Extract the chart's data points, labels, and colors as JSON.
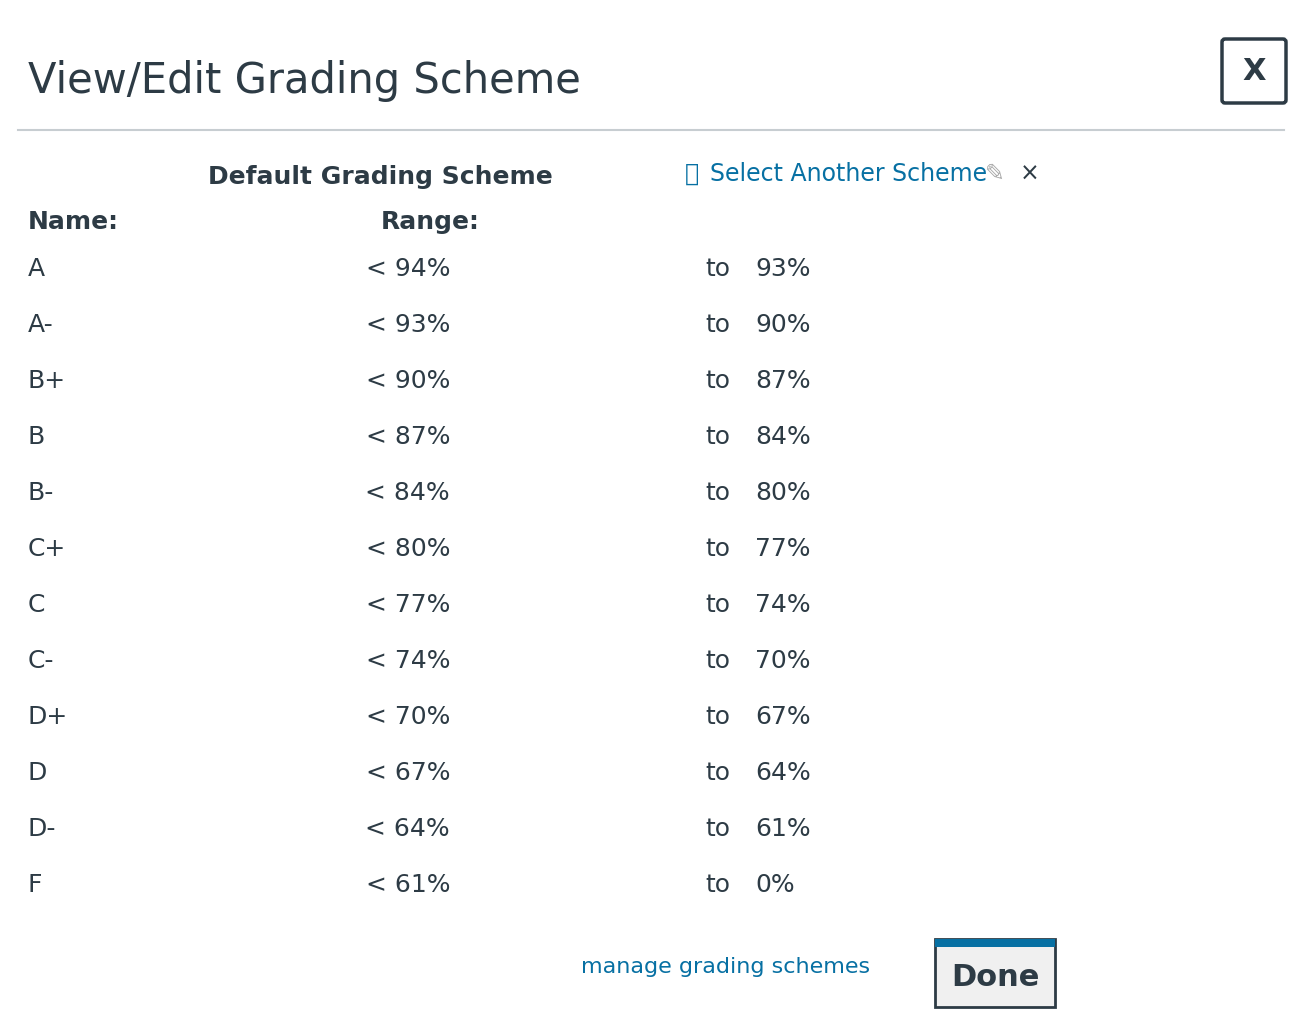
{
  "title": "View/Edit Grading Scheme",
  "close_button_label": "X",
  "default_scheme_label": "Default Grading Scheme",
  "select_another_label": "Select Another Scheme",
  "header_name": "Name:",
  "header_range": "Range:",
  "grades": [
    "A",
    "A-",
    "B+",
    "B",
    "B-",
    "C+",
    "C",
    "C-",
    "D+",
    "D",
    "D-",
    "F"
  ],
  "upper": [
    "< 94%",
    "< 93%",
    "< 90%",
    "< 87%",
    "< 84%",
    "< 80%",
    "< 77%",
    "< 74%",
    "< 70%",
    "< 67%",
    "< 64%",
    "< 61%"
  ],
  "lower": [
    "93%",
    "90%",
    "87%",
    "84%",
    "80%",
    "77%",
    "74%",
    "70%",
    "67%",
    "64%",
    "61%",
    "0%"
  ],
  "manage_label": "manage grading schemes",
  "done_label": "Done",
  "bg_color": "#ffffff",
  "border_color": "#2d3b45",
  "blue_color": "#0770a3",
  "text_color": "#2d3b45",
  "separator_color": "#c7cdd1",
  "done_bg": "#f0f0f0",
  "done_border": "#2d3b45",
  "close_border_color": "#2d3b45",
  "fig_width": 13.02,
  "fig_height": 10.35,
  "dpi": 100
}
